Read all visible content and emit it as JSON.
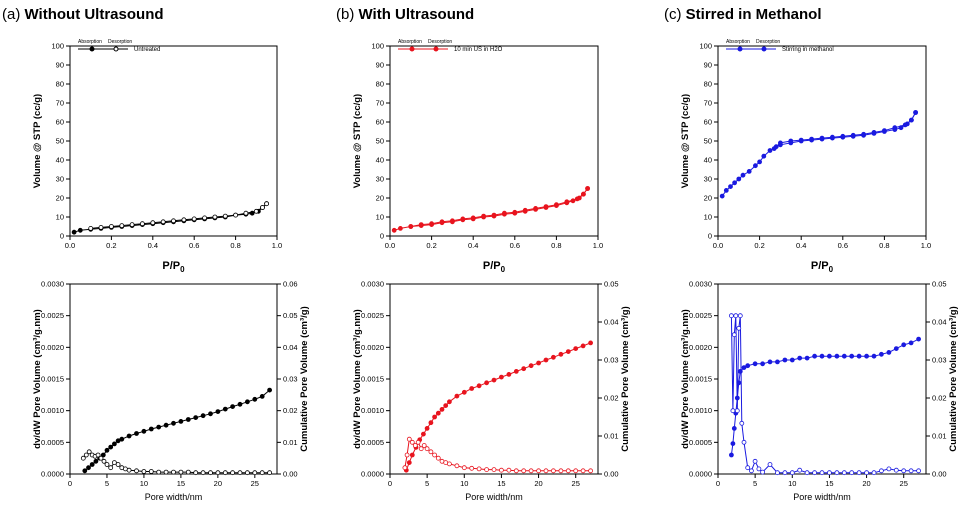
{
  "panels": [
    {
      "tag": "(a)",
      "title": "Without Ultrasound"
    },
    {
      "tag": "(b)",
      "title": "With Ultrasound"
    },
    {
      "tag": "(c)",
      "title": "Stirred in Methanol"
    }
  ],
  "colors": {
    "a": "#000000",
    "b": "#e8141e",
    "c": "#1a1ae0"
  },
  "legend_headers": {
    "adsorption": "Absorption",
    "desorption": "Desorption"
  },
  "chart_data": [
    {
      "type": "line",
      "panel": "a",
      "xlabel": "P/P0",
      "ylabel": "Volume @ STP (cc/g)",
      "xlim": [
        0,
        1.0
      ],
      "ylim": [
        0,
        100
      ],
      "xticks": [
        "0.0",
        "0.2",
        "0.4",
        "0.6",
        "0.8",
        "1.0"
      ],
      "yticks": [
        "0",
        "10",
        "20",
        "30",
        "40",
        "50",
        "60",
        "70",
        "80",
        "90",
        "100"
      ],
      "legend": {
        "placement": "top-left",
        "label": "Untreated"
      },
      "series": [
        {
          "marker": "filled",
          "x": [
            0.02,
            0.05,
            0.1,
            0.15,
            0.2,
            0.25,
            0.3,
            0.35,
            0.4,
            0.45,
            0.5,
            0.55,
            0.6,
            0.65,
            0.7,
            0.75,
            0.8,
            0.85,
            0.88,
            0.91,
            0.93,
            0.95
          ],
          "y": [
            2,
            3,
            3.5,
            4,
            4.5,
            5,
            5.5,
            6,
            6.5,
            7,
            7.5,
            8,
            8.5,
            9,
            9.5,
            10,
            11,
            11.5,
            12,
            13,
            15,
            17
          ]
        },
        {
          "marker": "open",
          "x": [
            0.95,
            0.93,
            0.9,
            0.85,
            0.8,
            0.75,
            0.7,
            0.65,
            0.6,
            0.55,
            0.5,
            0.45,
            0.4,
            0.35,
            0.3,
            0.25,
            0.2,
            0.15,
            0.1
          ],
          "y": [
            17,
            15,
            13,
            12,
            11,
            10.5,
            10,
            9.5,
            9,
            8.5,
            8,
            7.5,
            7,
            6.5,
            6,
            5.5,
            5,
            4.5,
            4
          ]
        }
      ]
    },
    {
      "type": "line",
      "panel": "b",
      "xlabel": "P/P0",
      "ylabel": "Volume @ STP (cc/g)",
      "xlim": [
        0,
        1.0
      ],
      "ylim": [
        0,
        100
      ],
      "xticks": [
        "0.0",
        "0.2",
        "0.4",
        "0.6",
        "0.8",
        "1.0"
      ],
      "yticks": [
        "0",
        "10",
        "20",
        "30",
        "40",
        "50",
        "60",
        "70",
        "80",
        "90",
        "100"
      ],
      "legend": {
        "placement": "top-left",
        "label": "10 min US in H2O"
      },
      "series": [
        {
          "marker": "filled",
          "x": [
            0.02,
            0.05,
            0.1,
            0.15,
            0.2,
            0.25,
            0.3,
            0.35,
            0.4,
            0.45,
            0.5,
            0.55,
            0.6,
            0.65,
            0.7,
            0.75,
            0.8,
            0.85,
            0.88,
            0.91,
            0.93,
            0.95
          ],
          "y": [
            3,
            4,
            5,
            5.5,
            6,
            7,
            7.5,
            8.5,
            9,
            10,
            10.5,
            11.5,
            12,
            13,
            14,
            15,
            16,
            17.5,
            18.5,
            20,
            22,
            25
          ]
        },
        {
          "marker": "filled",
          "x": [
            0.95,
            0.93,
            0.9,
            0.85,
            0.8,
            0.75,
            0.7,
            0.65,
            0.6,
            0.55,
            0.5,
            0.45,
            0.4,
            0.35,
            0.3,
            0.25,
            0.2,
            0.15,
            0.1
          ],
          "y": [
            25,
            22,
            19.5,
            18,
            16.5,
            15.5,
            14.5,
            13.5,
            12.5,
            12,
            11,
            10.5,
            9.5,
            9,
            8,
            7.5,
            6.5,
            6,
            5
          ]
        }
      ]
    },
    {
      "type": "line",
      "panel": "c",
      "xlabel": "P/P0",
      "ylabel": "Volume @ STP (cc/g)",
      "xlim": [
        0,
        1.0
      ],
      "ylim": [
        0,
        100
      ],
      "xticks": [
        "0.0",
        "0.2",
        "0.4",
        "0.6",
        "0.8",
        "1.0"
      ],
      "yticks": [
        "0",
        "10",
        "20",
        "30",
        "40",
        "50",
        "60",
        "70",
        "80",
        "90",
        "100"
      ],
      "legend": {
        "placement": "top-left",
        "label": "Stirring in methanol"
      },
      "series": [
        {
          "marker": "filled",
          "x": [
            0.02,
            0.04,
            0.06,
            0.08,
            0.1,
            0.12,
            0.15,
            0.18,
            0.2,
            0.22,
            0.25,
            0.28,
            0.3,
            0.35,
            0.4,
            0.45,
            0.5,
            0.55,
            0.6,
            0.65,
            0.7,
            0.75,
            0.8,
            0.85,
            0.88,
            0.91,
            0.93,
            0.95
          ],
          "y": [
            21,
            24,
            26,
            28,
            30,
            32,
            34,
            37,
            39,
            42,
            45,
            47,
            48,
            49,
            50,
            50.5,
            51,
            51.5,
            52,
            52.5,
            53,
            54,
            55,
            56,
            57,
            59,
            61,
            65
          ]
        },
        {
          "marker": "filled",
          "x": [
            0.95,
            0.93,
            0.9,
            0.85,
            0.8,
            0.75,
            0.7,
            0.65,
            0.6,
            0.55,
            0.5,
            0.45,
            0.4,
            0.35,
            0.3,
            0.27
          ],
          "y": [
            65,
            61,
            58.5,
            57,
            55.5,
            54.5,
            53.5,
            53,
            52.5,
            52,
            51.5,
            51,
            50.5,
            50,
            49,
            46
          ]
        }
      ]
    },
    {
      "type": "line",
      "panel": "a",
      "xlabel": "Pore width/nm",
      "ylabel": "dv/dW Pore Volume (cm3/g.nm)",
      "y2label": "Cumulative Pore Volume (cm3/g)",
      "xlim": [
        0,
        28
      ],
      "ylim": [
        0,
        0.003
      ],
      "y2lim": [
        0,
        0.06
      ],
      "xticks": [
        "0",
        "5",
        "10",
        "15",
        "20",
        "25"
      ],
      "yticks": [
        "0.0000",
        "0.0005",
        "0.0010",
        "0.0015",
        "0.0020",
        "0.0025",
        "0.0030"
      ],
      "y2ticks": [
        "0.00",
        "0.01",
        "0.02",
        "0.03",
        "0.04",
        "0.05",
        "0.06"
      ],
      "series": [
        {
          "axis": "y2",
          "marker": "filled",
          "x": [
            2,
            2.5,
            3,
            3.5,
            4,
            4.5,
            5,
            5.5,
            6,
            6.5,
            7,
            8,
            9,
            10,
            11,
            12,
            13,
            14,
            15,
            16,
            17,
            18,
            19,
            20,
            21,
            22,
            23,
            24,
            25,
            26,
            27
          ],
          "y": [
            0.001,
            0.002,
            0.003,
            0.004,
            0.005,
            0.006,
            0.0075,
            0.0085,
            0.0095,
            0.0105,
            0.011,
            0.012,
            0.0128,
            0.0135,
            0.0142,
            0.0148,
            0.0154,
            0.016,
            0.0166,
            0.0172,
            0.0178,
            0.0184,
            0.019,
            0.0197,
            0.0205,
            0.0213,
            0.022,
            0.0228,
            0.0236,
            0.0245,
            0.0265
          ]
        },
        {
          "axis": "y",
          "marker": "open",
          "x": [
            1.8,
            2.2,
            2.6,
            3,
            3.4,
            3.8,
            4.2,
            4.6,
            5,
            5.5,
            6,
            6.5,
            7,
            7.5,
            8,
            9,
            10,
            11,
            12,
            13,
            14,
            15,
            16,
            17,
            18,
            19,
            20,
            21,
            22,
            23,
            24,
            25,
            26,
            27
          ],
          "y": [
            0.00025,
            0.0003,
            0.00035,
            0.0003,
            0.00028,
            0.0003,
            0.00025,
            0.0002,
            0.00015,
            0.0001,
            0.00018,
            0.00015,
            0.0001,
            8e-05,
            6e-05,
            5e-05,
            4e-05,
            4e-05,
            3e-05,
            3e-05,
            3e-05,
            3e-05,
            3e-05,
            2e-05,
            2e-05,
            2e-05,
            2e-05,
            2e-05,
            2e-05,
            2e-05,
            2e-05,
            2e-05,
            2e-05,
            2e-05
          ]
        }
      ]
    },
    {
      "type": "line",
      "panel": "b",
      "xlabel": "Pore width/nm",
      "ylabel": "dv/dW Pore Volume (cm3/g.nm)",
      "y2label": "Cumulative Pore Volume (cm3/g)",
      "xlim": [
        0,
        28
      ],
      "ylim": [
        0,
        0.003
      ],
      "y2lim": [
        0,
        0.05
      ],
      "xticks": [
        "0",
        "5",
        "10",
        "15",
        "20",
        "25"
      ],
      "yticks": [
        "0.0000",
        "0.0005",
        "0.0010",
        "0.0015",
        "0.0020",
        "0.0025",
        "0.0030"
      ],
      "y2ticks": [
        "0.00",
        "0.01",
        "0.02",
        "0.03",
        "0.04",
        "0.05"
      ],
      "series": [
        {
          "axis": "y2",
          "marker": "filled",
          "x": [
            2.2,
            2.6,
            3,
            3.5,
            4,
            4.5,
            5,
            5.5,
            6,
            6.5,
            7,
            7.5,
            8,
            9,
            10,
            11,
            12,
            13,
            14,
            15,
            16,
            17,
            18,
            19,
            20,
            21,
            22,
            23,
            24,
            25,
            26,
            27
          ],
          "y": [
            0.001,
            0.003,
            0.005,
            0.007,
            0.009,
            0.0105,
            0.012,
            0.0135,
            0.015,
            0.016,
            0.017,
            0.018,
            0.019,
            0.0205,
            0.0215,
            0.0225,
            0.0232,
            0.024,
            0.0247,
            0.0255,
            0.0262,
            0.027,
            0.0277,
            0.0285,
            0.0292,
            0.03,
            0.0307,
            0.0315,
            0.0322,
            0.033,
            0.0337,
            0.0345
          ]
        },
        {
          "axis": "y",
          "marker": "open",
          "x": [
            2,
            2.3,
            2.6,
            3,
            3.4,
            3.8,
            4.2,
            4.6,
            5,
            5.5,
            6,
            6.5,
            7,
            7.5,
            8,
            9,
            10,
            11,
            12,
            13,
            14,
            15,
            16,
            17,
            18,
            19,
            20,
            21,
            22,
            23,
            24,
            25,
            26,
            27
          ],
          "y": [
            0.0001,
            0.0003,
            0.00055,
            0.0005,
            0.00045,
            0.0005,
            0.0004,
            0.00045,
            0.0004,
            0.00035,
            0.0003,
            0.00025,
            0.0002,
            0.00018,
            0.00016,
            0.00013,
            0.0001,
            9e-05,
            8e-05,
            7e-05,
            7e-05,
            6e-05,
            6e-05,
            5e-05,
            5e-05,
            5e-05,
            5e-05,
            5e-05,
            5e-05,
            5e-05,
            5e-05,
            5e-05,
            5e-05,
            5e-05
          ]
        }
      ]
    },
    {
      "type": "line",
      "panel": "c",
      "xlabel": "Pore width/nm",
      "ylabel": "dv/dW Pore Volume (cm3/g.nm)",
      "y2label": "Cumulative Pore Volume (cm3/g)",
      "xlim": [
        0,
        28
      ],
      "ylim": [
        0,
        0.003
      ],
      "y2lim": [
        0,
        0.05
      ],
      "xticks": [
        "0",
        "5",
        "10",
        "15",
        "20",
        "25"
      ],
      "yticks": [
        "0.0000",
        "0.0005",
        "0.0010",
        "0.0015",
        "0.0020",
        "0.0025",
        "0.0030"
      ],
      "y2ticks": [
        "0.00",
        "0.01",
        "0.02",
        "0.03",
        "0.04",
        "0.05"
      ],
      "series": [
        {
          "axis": "y2",
          "marker": "filled",
          "x": [
            1.8,
            2,
            2.2,
            2.4,
            2.6,
            2.8,
            3,
            3.5,
            4,
            5,
            6,
            7,
            8,
            9,
            10,
            11,
            12,
            13,
            14,
            15,
            16,
            17,
            18,
            19,
            20,
            21,
            22,
            23,
            24,
            25,
            26,
            27
          ],
          "y": [
            0.005,
            0.008,
            0.012,
            0.016,
            0.02,
            0.024,
            0.027,
            0.028,
            0.0285,
            0.029,
            0.029,
            0.0295,
            0.0295,
            0.03,
            0.03,
            0.0305,
            0.0305,
            0.031,
            0.031,
            0.031,
            0.031,
            0.031,
            0.031,
            0.031,
            0.031,
            0.031,
            0.0315,
            0.032,
            0.033,
            0.034,
            0.0345,
            0.0355
          ]
        },
        {
          "axis": "y",
          "marker": "open",
          "x": [
            1.8,
            2,
            2.2,
            2.4,
            2.6,
            2.8,
            3,
            3.2,
            3.5,
            4,
            4.5,
            5,
            5.5,
            6,
            7,
            8,
            9,
            10,
            11,
            12,
            13,
            14,
            15,
            16,
            17,
            18,
            19,
            20,
            21,
            22,
            23,
            24,
            25,
            26,
            27
          ],
          "y": [
            0.0025,
            0.001,
            0.0022,
            0.0025,
            0.001,
            0.0023,
            0.0025,
            0.0008,
            0.0005,
            0.0001,
            5e-05,
            0.0002,
            8e-05,
            3e-05,
            0.00015,
            2e-05,
            2e-05,
            2e-05,
            6e-05,
            2e-05,
            2e-05,
            2e-05,
            2e-05,
            2e-05,
            2e-05,
            2e-05,
            2e-05,
            2e-05,
            2e-05,
            5e-05,
            8e-05,
            6e-05,
            5e-05,
            5e-05,
            5e-05
          ]
        }
      ]
    }
  ]
}
